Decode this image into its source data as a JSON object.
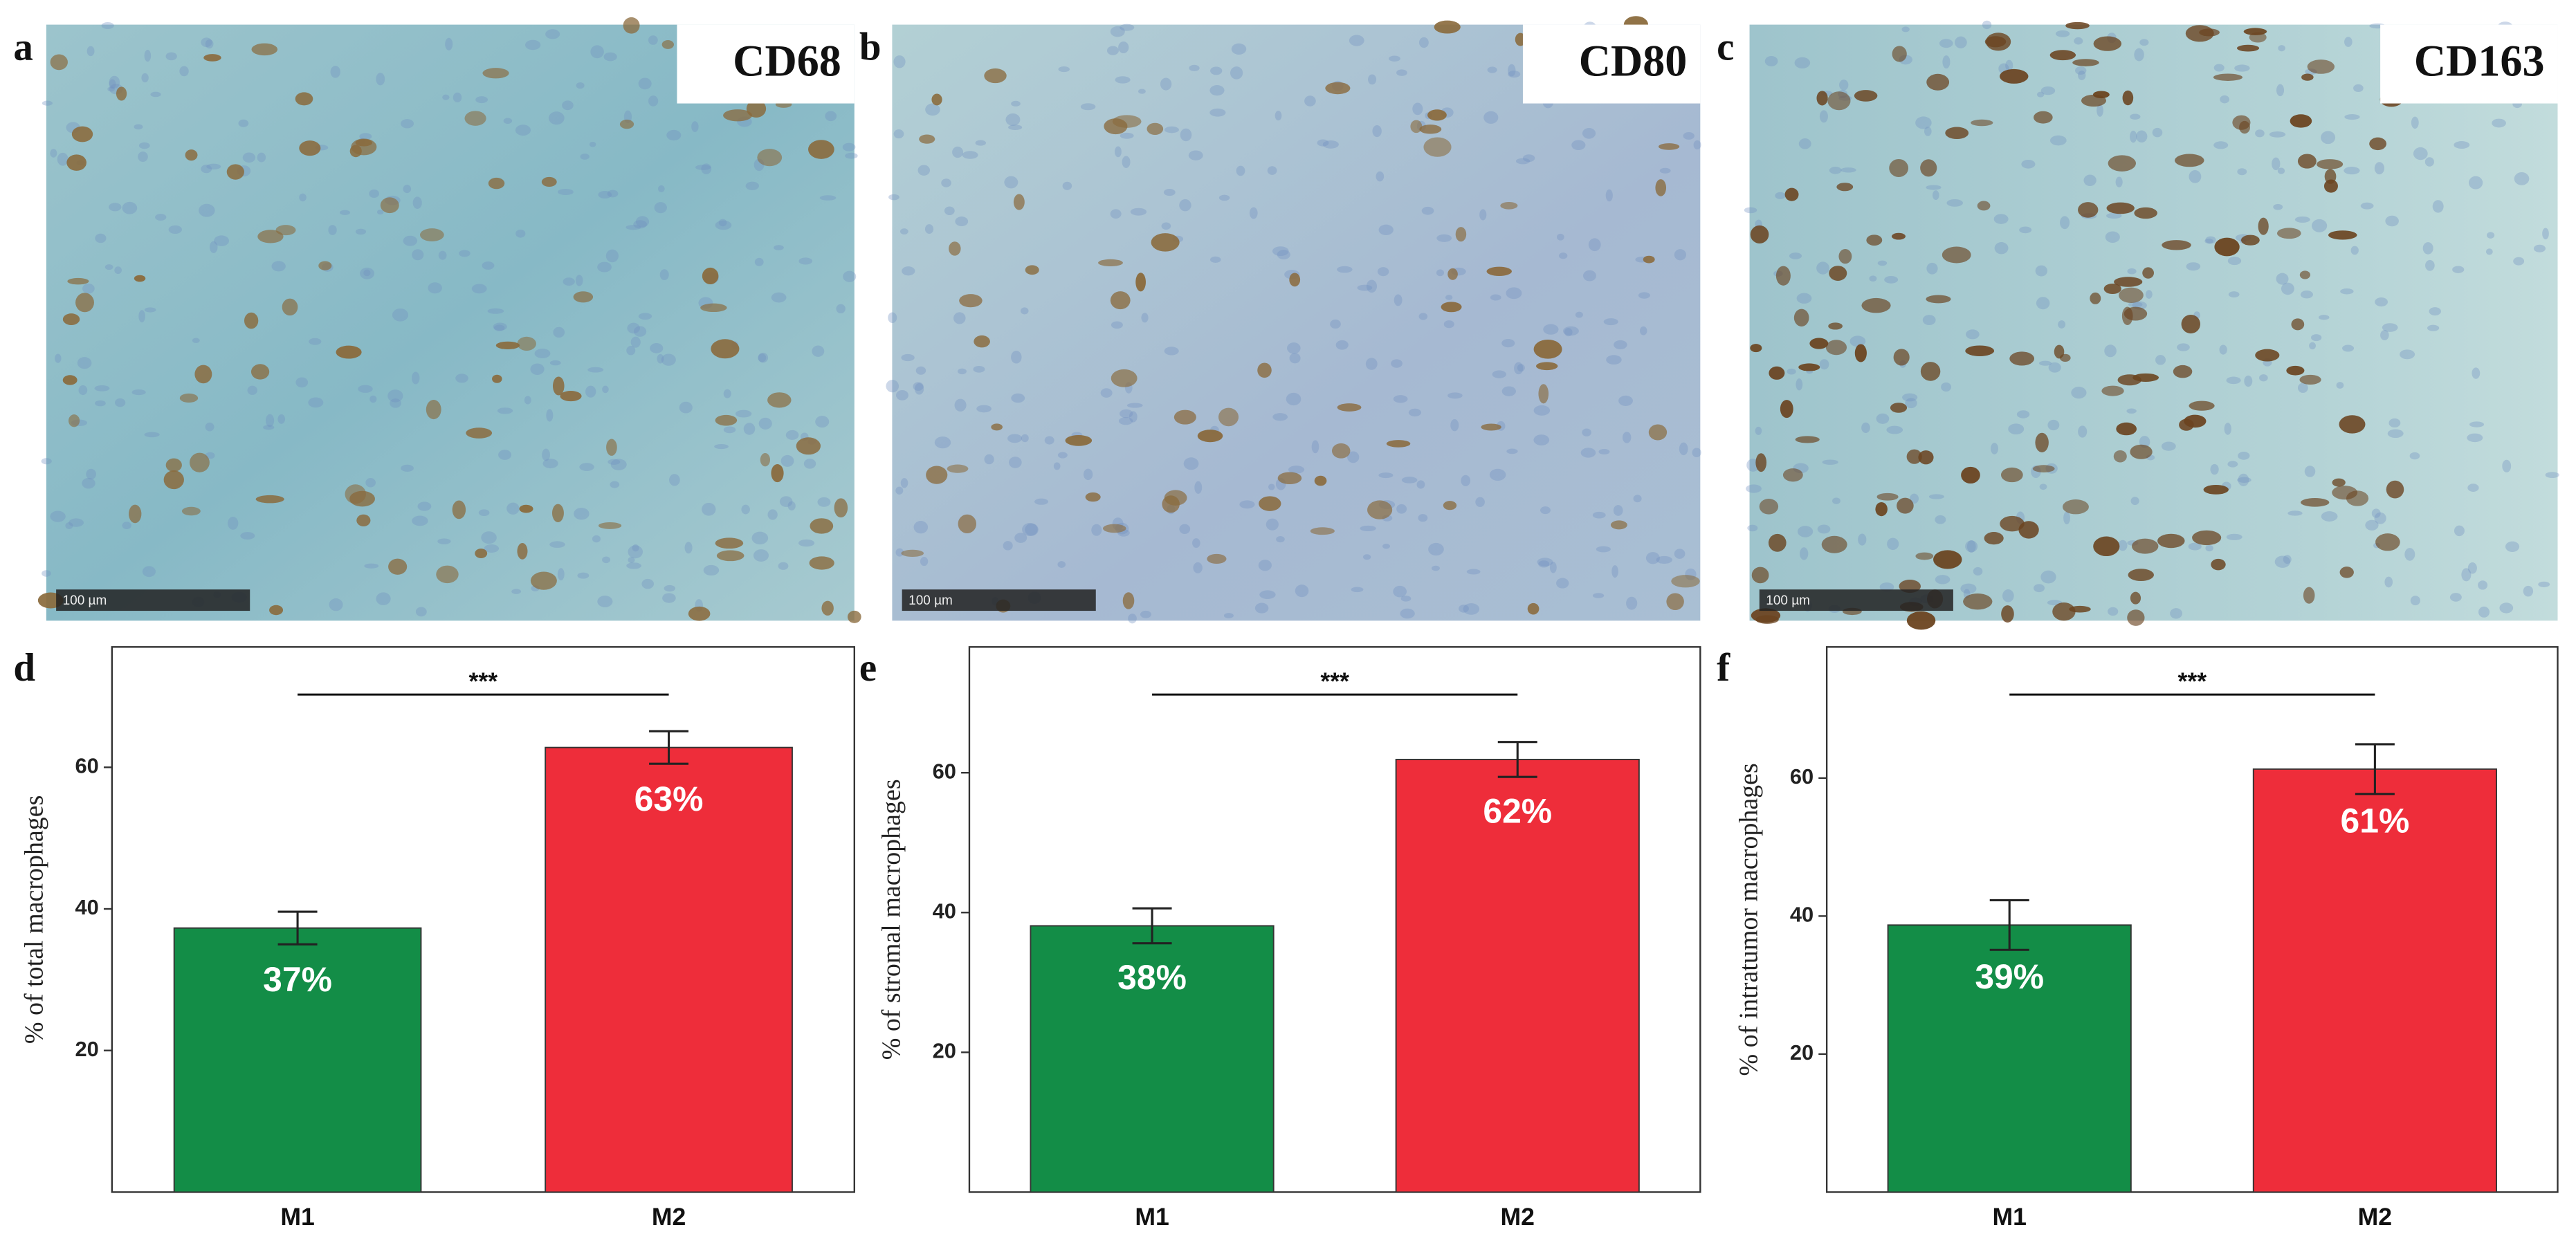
{
  "panels": [
    {
      "letter": "a",
      "label": "CD68",
      "scale_bar": "100 µm"
    },
    {
      "letter": "b",
      "label": "CD80",
      "scale_bar": "100 µm"
    },
    {
      "letter": "c",
      "label": "CD163",
      "scale_bar": "100 µm"
    }
  ],
  "chart_data": [
    {
      "type": "bar",
      "panel_label": "d",
      "ylabel": "% of total macrophages",
      "categories": [
        "M1",
        "M2"
      ],
      "values": [
        37.3,
        62.8
      ],
      "errors": [
        2.3,
        2.3
      ],
      "value_labels": [
        "37%",
        "63%"
      ],
      "colors": [
        "#138d47",
        "#ee2d3a"
      ],
      "ylim": [
        0,
        77
      ],
      "yticks": [
        20,
        40,
        60
      ],
      "significance": "***"
    },
    {
      "type": "bar",
      "panel_label": "e",
      "ylabel": "% of stromal macrophages",
      "categories": [
        "M1",
        "M2"
      ],
      "values": [
        38.1,
        61.9
      ],
      "errors": [
        2.5,
        2.5
      ],
      "value_labels": [
        "38%",
        "62%"
      ],
      "colors": [
        "#138d47",
        "#ee2d3a"
      ],
      "ylim": [
        0,
        78
      ],
      "yticks": [
        20,
        40,
        60
      ],
      "significance": "***"
    },
    {
      "type": "bar",
      "panel_label": "f",
      "ylabel": "% of intratumor macrophages",
      "categories": [
        "M1",
        "M2"
      ],
      "values": [
        38.7,
        61.3
      ],
      "errors": [
        3.6,
        3.6
      ],
      "value_labels": [
        "39%",
        "61%"
      ],
      "colors": [
        "#138d47",
        "#ee2d3a"
      ],
      "ylim": [
        0,
        79
      ],
      "yticks": [
        20,
        40,
        60
      ],
      "significance": "***"
    }
  ]
}
